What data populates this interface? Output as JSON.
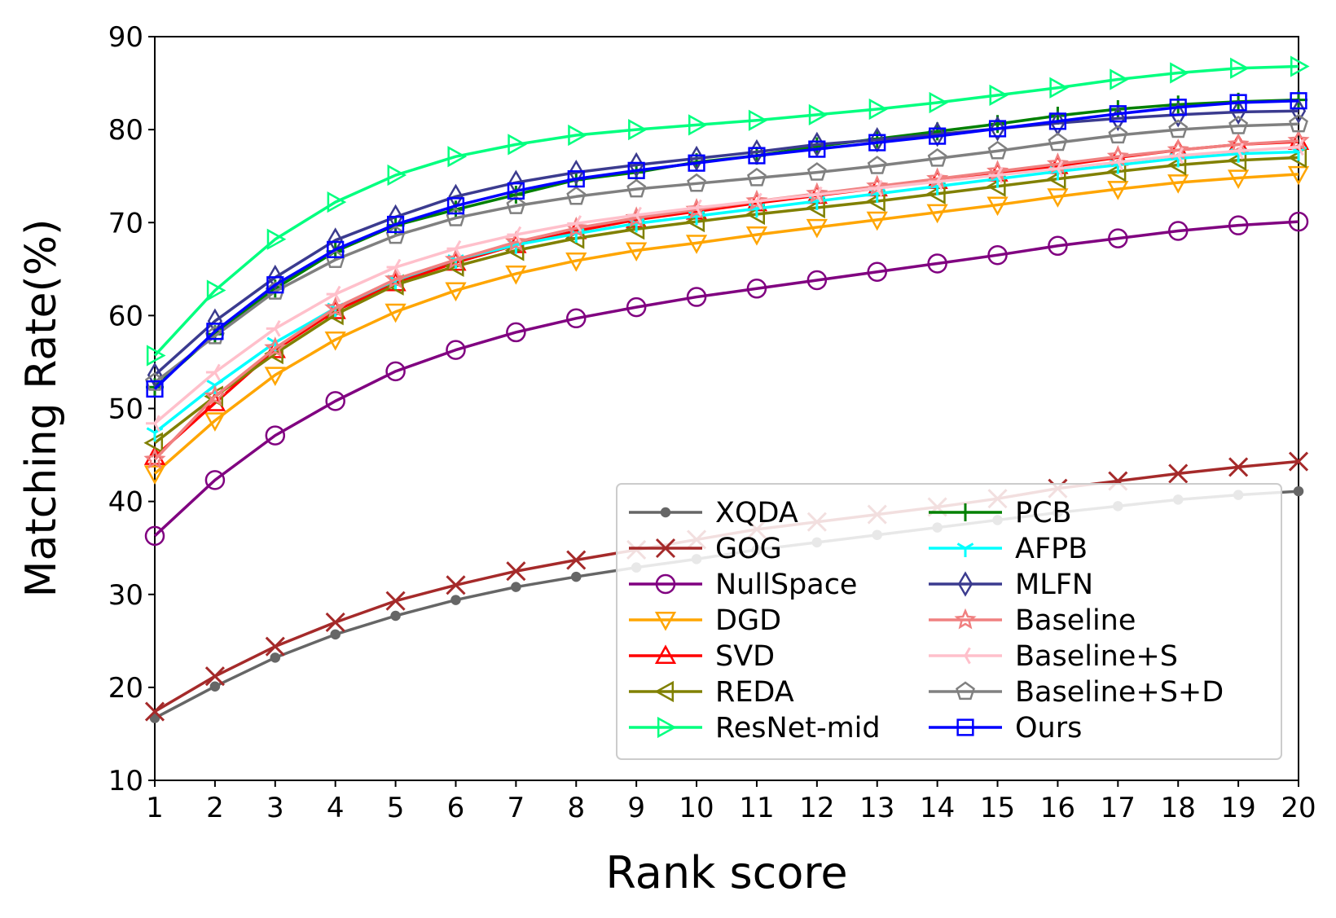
{
  "chart_data": {
    "type": "line",
    "title": "",
    "xlabel": "Rank score",
    "ylabel": "Matching Rate(%)",
    "xlim": [
      1,
      20
    ],
    "ylim": [
      10,
      90
    ],
    "x": [
      1,
      2,
      3,
      4,
      5,
      6,
      7,
      8,
      9,
      10,
      11,
      12,
      13,
      14,
      15,
      16,
      17,
      18,
      19,
      20
    ],
    "xticks": [
      "1",
      "2",
      "3",
      "4",
      "5",
      "6",
      "7",
      "8",
      "9",
      "10",
      "11",
      "12",
      "13",
      "14",
      "15",
      "16",
      "17",
      "18",
      "19",
      "20"
    ],
    "yticks": [
      "10",
      "20",
      "30",
      "40",
      "50",
      "60",
      "70",
      "80",
      "90"
    ],
    "grid": false,
    "legend": {
      "position": "bottom-right",
      "columns": 2
    },
    "series": [
      {
        "name": "XQDA",
        "color": "#666666",
        "marker": "dot",
        "values": [
          16.7,
          20.1,
          23.2,
          25.7,
          27.7,
          29.4,
          30.8,
          31.9,
          32.9,
          33.8,
          34.8,
          35.6,
          36.4,
          37.2,
          38.0,
          38.8,
          39.5,
          40.2,
          40.7,
          41.1
        ]
      },
      {
        "name": "GOG",
        "color": "#a52a2a",
        "marker": "x",
        "values": [
          17.4,
          21.2,
          24.4,
          27.0,
          29.3,
          31.0,
          32.5,
          33.7,
          34.8,
          35.9,
          37.0,
          37.8,
          38.6,
          39.4,
          40.3,
          41.4,
          42.2,
          43.0,
          43.7,
          44.3
        ]
      },
      {
        "name": "NullSpace",
        "color": "#800080",
        "marker": "circle",
        "values": [
          36.3,
          42.3,
          47.1,
          50.8,
          54.0,
          56.3,
          58.2,
          59.7,
          60.9,
          62.0,
          62.9,
          63.8,
          64.7,
          65.6,
          66.5,
          67.5,
          68.3,
          69.1,
          69.7,
          70.1
        ]
      },
      {
        "name": "DGD",
        "color": "#ffa500",
        "marker": "triangle-down",
        "values": [
          43.0,
          48.7,
          53.6,
          57.4,
          60.4,
          62.7,
          64.5,
          65.9,
          67.0,
          67.8,
          68.7,
          69.5,
          70.3,
          71.1,
          71.9,
          72.8,
          73.6,
          74.3,
          74.8,
          75.2
        ]
      },
      {
        "name": "SVD",
        "color": "#ff0000",
        "marker": "triangle-up",
        "values": [
          44.8,
          50.6,
          56.3,
          60.5,
          63.5,
          65.7,
          67.6,
          69.1,
          70.3,
          71.2,
          72.1,
          72.9,
          73.7,
          74.5,
          75.3,
          76.1,
          77.0,
          77.8,
          78.4,
          78.7
        ]
      },
      {
        "name": "REDA",
        "color": "#808000",
        "marker": "triangle-left",
        "values": [
          46.3,
          51.3,
          55.9,
          60.1,
          63.3,
          65.3,
          67.0,
          68.3,
          69.3,
          70.1,
          70.9,
          71.6,
          72.3,
          73.1,
          73.9,
          74.7,
          75.5,
          76.2,
          76.7,
          77.0
        ]
      },
      {
        "name": "ResNet-mid",
        "color": "#00ff7f",
        "marker": "triangle-right",
        "values": [
          55.7,
          62.7,
          68.2,
          72.2,
          75.1,
          77.1,
          78.4,
          79.4,
          80.0,
          80.5,
          81.0,
          81.6,
          82.2,
          82.9,
          83.7,
          84.5,
          85.4,
          86.1,
          86.6,
          86.8
        ]
      },
      {
        "name": "PCB",
        "color": "#008000",
        "marker": "plus",
        "values": [
          52.3,
          58.0,
          62.9,
          66.9,
          69.7,
          71.4,
          73.0,
          74.6,
          75.4,
          76.5,
          77.2,
          78.2,
          79.0,
          79.8,
          80.6,
          81.5,
          82.2,
          82.7,
          83.0,
          83.2
        ]
      },
      {
        "name": "AFPB",
        "color": "#00ffff",
        "marker": "tri-down",
        "values": [
          47.4,
          52.5,
          57.1,
          60.8,
          63.8,
          66.0,
          67.6,
          68.8,
          69.9,
          70.7,
          71.5,
          72.3,
          73.1,
          73.9,
          74.7,
          75.5,
          76.2,
          76.9,
          77.4,
          77.6
        ]
      },
      {
        "name": "MLFN",
        "color": "#3b3b8f",
        "marker": "diamond",
        "values": [
          53.6,
          59.4,
          64.1,
          68.1,
          70.6,
          72.8,
          74.3,
          75.4,
          76.2,
          76.9,
          77.6,
          78.4,
          78.9,
          79.5,
          80.1,
          80.7,
          81.2,
          81.6,
          81.9,
          82.0
        ]
      },
      {
        "name": "Baseline",
        "color": "#f08080",
        "marker": "star",
        "values": [
          44.5,
          51.3,
          56.5,
          60.8,
          63.9,
          66.0,
          67.9,
          69.4,
          70.5,
          71.4,
          72.3,
          73.1,
          73.9,
          74.7,
          75.5,
          76.3,
          77.1,
          77.8,
          78.4,
          78.8
        ]
      },
      {
        "name": "Baseline+S",
        "color": "#ffc0cb",
        "marker": "tri-left",
        "values": [
          48.4,
          53.9,
          58.6,
          62.3,
          65.2,
          67.2,
          68.7,
          69.9,
          70.8,
          71.6,
          72.3,
          73.0,
          73.7,
          74.4,
          75.1,
          75.8,
          76.5,
          77.2,
          77.7,
          78.1
        ]
      },
      {
        "name": "Baseline+S+D",
        "color": "#808080",
        "marker": "pentagon",
        "values": [
          52.8,
          57.8,
          62.6,
          66.0,
          68.6,
          70.5,
          71.8,
          72.8,
          73.6,
          74.2,
          74.8,
          75.4,
          76.1,
          76.9,
          77.7,
          78.6,
          79.4,
          80.0,
          80.4,
          80.6
        ]
      },
      {
        "name": "Ours",
        "color": "#0000ff",
        "marker": "square",
        "values": [
          52.1,
          58.3,
          63.3,
          67.1,
          69.8,
          71.8,
          73.4,
          74.7,
          75.6,
          76.4,
          77.2,
          77.9,
          78.6,
          79.3,
          80.1,
          80.9,
          81.7,
          82.4,
          82.9,
          83.1
        ]
      }
    ]
  }
}
